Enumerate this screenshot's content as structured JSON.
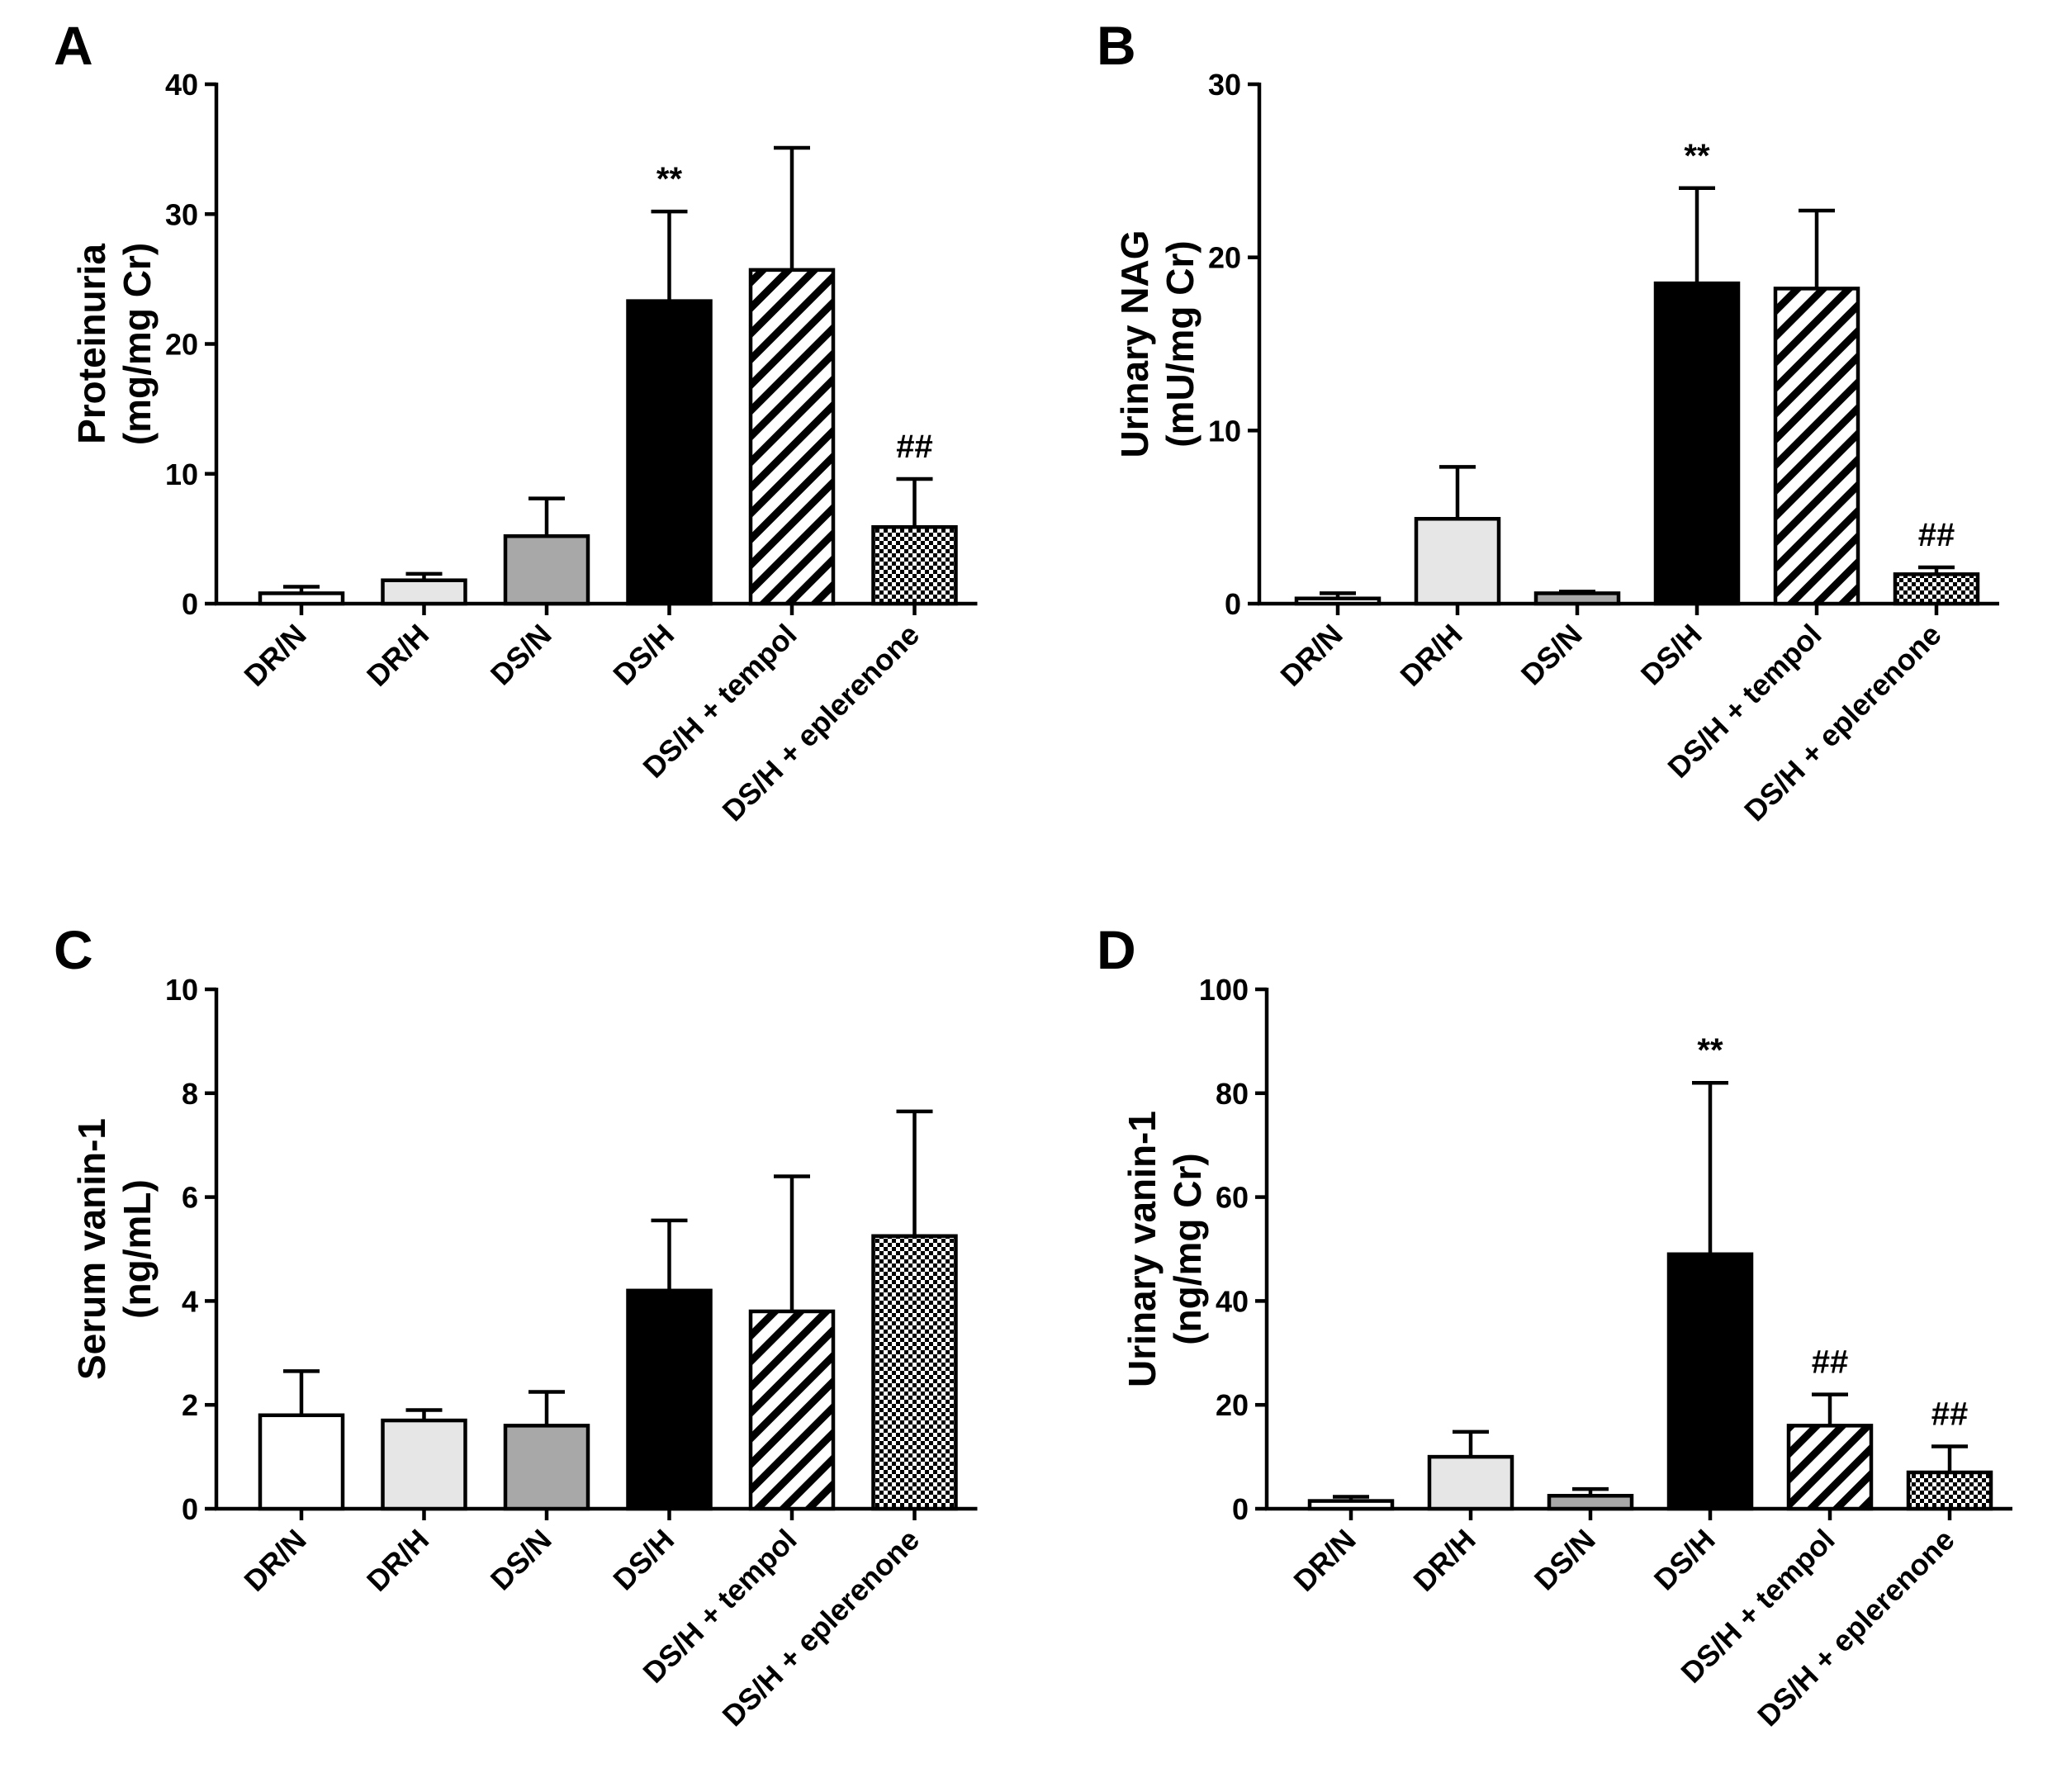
{
  "chart_data": [
    {
      "panel": "A",
      "type": "bar",
      "ylabel_lines": [
        "Proteinuria",
        "(mg/mg Cr)"
      ],
      "ylim": [
        0,
        40
      ],
      "yticks": [
        0,
        10,
        20,
        30,
        40
      ],
      "categories": [
        "DR/N",
        "DR/H",
        "DS/N",
        "DS/H",
        "DS/H + tempol",
        "DS/H + eplerenone"
      ],
      "values": [
        0.8,
        1.8,
        5.2,
        23.3,
        25.7,
        5.9
      ],
      "errors": [
        0.5,
        0.5,
        2.9,
        6.9,
        9.4,
        3.7
      ],
      "annotations": [
        "",
        "",
        "",
        "**",
        "",
        "##"
      ]
    },
    {
      "panel": "B",
      "type": "bar",
      "ylabel_lines": [
        "Urinary NAG",
        "(mU/mg Cr)"
      ],
      "ylim": [
        0,
        30
      ],
      "yticks": [
        0,
        10,
        20,
        30
      ],
      "categories": [
        "DR/N",
        "DR/H",
        "DS/N",
        "DS/H",
        "DS/H + tempol",
        "DS/H + eplerenone"
      ],
      "values": [
        0.3,
        4.9,
        0.6,
        18.5,
        18.2,
        1.7
      ],
      "errors": [
        0.3,
        3.0,
        0.1,
        5.5,
        4.5,
        0.4
      ],
      "annotations": [
        "",
        "",
        "",
        "**",
        "",
        "##"
      ]
    },
    {
      "panel": "C",
      "type": "bar",
      "ylabel_lines": [
        "Serum vanin-1",
        "(ng/mL)"
      ],
      "ylim": [
        0,
        10
      ],
      "yticks": [
        0,
        2,
        4,
        6,
        8,
        10
      ],
      "categories": [
        "DR/N",
        "DR/H",
        "DS/N",
        "DS/H",
        "DS/H + tempol",
        "DS/H + eplerenone"
      ],
      "values": [
        1.8,
        1.7,
        1.6,
        4.2,
        3.8,
        5.25
      ],
      "errors": [
        0.85,
        0.2,
        0.65,
        1.35,
        2.6,
        2.4
      ],
      "annotations": [
        "",
        "",
        "",
        "",
        "",
        ""
      ]
    },
    {
      "panel": "D",
      "type": "bar",
      "ylabel_lines": [
        "Urinary vanin-1",
        "(ng/mg Cr)"
      ],
      "ylim": [
        0,
        100
      ],
      "yticks": [
        0,
        20,
        40,
        60,
        80,
        100
      ],
      "categories": [
        "DR/N",
        "DR/H",
        "DS/N",
        "DS/H",
        "DS/H + tempol",
        "DS/H + eplerenone"
      ],
      "values": [
        1.5,
        10,
        2.5,
        49,
        16,
        7
      ],
      "errors": [
        0.8,
        4.8,
        1.3,
        33,
        6,
        5
      ],
      "annotations": [
        "",
        "",
        "",
        "**",
        "##",
        "##"
      ]
    }
  ],
  "colors": {
    "fills": [
      "#ffffff",
      "#e6e6e6",
      "#a8a8a8",
      "#000000",
      "hatch",
      "checker"
    ],
    "ink": "#000000"
  }
}
